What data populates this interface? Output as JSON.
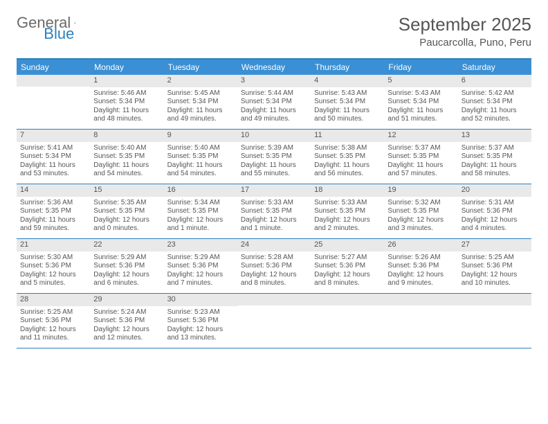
{
  "logo": {
    "text1": "General",
    "text2": "Blue"
  },
  "title": "September 2025",
  "location": "Paucarcolla, Puno, Peru",
  "colors": {
    "accent": "#3b8fd4",
    "border": "#2a7fbf",
    "dayHeaderBg": "#e9e9e9",
    "text": "#555555"
  },
  "weekdays": [
    "Sunday",
    "Monday",
    "Tuesday",
    "Wednesday",
    "Thursday",
    "Friday",
    "Saturday"
  ],
  "weeks": [
    [
      {
        "n": "",
        "sunrise": "",
        "sunset": "",
        "daylight": ""
      },
      {
        "n": "1",
        "sunrise": "Sunrise: 5:46 AM",
        "sunset": "Sunset: 5:34 PM",
        "daylight": "Daylight: 11 hours and 48 minutes."
      },
      {
        "n": "2",
        "sunrise": "Sunrise: 5:45 AM",
        "sunset": "Sunset: 5:34 PM",
        "daylight": "Daylight: 11 hours and 49 minutes."
      },
      {
        "n": "3",
        "sunrise": "Sunrise: 5:44 AM",
        "sunset": "Sunset: 5:34 PM",
        "daylight": "Daylight: 11 hours and 49 minutes."
      },
      {
        "n": "4",
        "sunrise": "Sunrise: 5:43 AM",
        "sunset": "Sunset: 5:34 PM",
        "daylight": "Daylight: 11 hours and 50 minutes."
      },
      {
        "n": "5",
        "sunrise": "Sunrise: 5:43 AM",
        "sunset": "Sunset: 5:34 PM",
        "daylight": "Daylight: 11 hours and 51 minutes."
      },
      {
        "n": "6",
        "sunrise": "Sunrise: 5:42 AM",
        "sunset": "Sunset: 5:34 PM",
        "daylight": "Daylight: 11 hours and 52 minutes."
      }
    ],
    [
      {
        "n": "7",
        "sunrise": "Sunrise: 5:41 AM",
        "sunset": "Sunset: 5:34 PM",
        "daylight": "Daylight: 11 hours and 53 minutes."
      },
      {
        "n": "8",
        "sunrise": "Sunrise: 5:40 AM",
        "sunset": "Sunset: 5:35 PM",
        "daylight": "Daylight: 11 hours and 54 minutes."
      },
      {
        "n": "9",
        "sunrise": "Sunrise: 5:40 AM",
        "sunset": "Sunset: 5:35 PM",
        "daylight": "Daylight: 11 hours and 54 minutes."
      },
      {
        "n": "10",
        "sunrise": "Sunrise: 5:39 AM",
        "sunset": "Sunset: 5:35 PM",
        "daylight": "Daylight: 11 hours and 55 minutes."
      },
      {
        "n": "11",
        "sunrise": "Sunrise: 5:38 AM",
        "sunset": "Sunset: 5:35 PM",
        "daylight": "Daylight: 11 hours and 56 minutes."
      },
      {
        "n": "12",
        "sunrise": "Sunrise: 5:37 AM",
        "sunset": "Sunset: 5:35 PM",
        "daylight": "Daylight: 11 hours and 57 minutes."
      },
      {
        "n": "13",
        "sunrise": "Sunrise: 5:37 AM",
        "sunset": "Sunset: 5:35 PM",
        "daylight": "Daylight: 11 hours and 58 minutes."
      }
    ],
    [
      {
        "n": "14",
        "sunrise": "Sunrise: 5:36 AM",
        "sunset": "Sunset: 5:35 PM",
        "daylight": "Daylight: 11 hours and 59 minutes."
      },
      {
        "n": "15",
        "sunrise": "Sunrise: 5:35 AM",
        "sunset": "Sunset: 5:35 PM",
        "daylight": "Daylight: 12 hours and 0 minutes."
      },
      {
        "n": "16",
        "sunrise": "Sunrise: 5:34 AM",
        "sunset": "Sunset: 5:35 PM",
        "daylight": "Daylight: 12 hours and 1 minute."
      },
      {
        "n": "17",
        "sunrise": "Sunrise: 5:33 AM",
        "sunset": "Sunset: 5:35 PM",
        "daylight": "Daylight: 12 hours and 1 minute."
      },
      {
        "n": "18",
        "sunrise": "Sunrise: 5:33 AM",
        "sunset": "Sunset: 5:35 PM",
        "daylight": "Daylight: 12 hours and 2 minutes."
      },
      {
        "n": "19",
        "sunrise": "Sunrise: 5:32 AM",
        "sunset": "Sunset: 5:35 PM",
        "daylight": "Daylight: 12 hours and 3 minutes."
      },
      {
        "n": "20",
        "sunrise": "Sunrise: 5:31 AM",
        "sunset": "Sunset: 5:36 PM",
        "daylight": "Daylight: 12 hours and 4 minutes."
      }
    ],
    [
      {
        "n": "21",
        "sunrise": "Sunrise: 5:30 AM",
        "sunset": "Sunset: 5:36 PM",
        "daylight": "Daylight: 12 hours and 5 minutes."
      },
      {
        "n": "22",
        "sunrise": "Sunrise: 5:29 AM",
        "sunset": "Sunset: 5:36 PM",
        "daylight": "Daylight: 12 hours and 6 minutes."
      },
      {
        "n": "23",
        "sunrise": "Sunrise: 5:29 AM",
        "sunset": "Sunset: 5:36 PM",
        "daylight": "Daylight: 12 hours and 7 minutes."
      },
      {
        "n": "24",
        "sunrise": "Sunrise: 5:28 AM",
        "sunset": "Sunset: 5:36 PM",
        "daylight": "Daylight: 12 hours and 8 minutes."
      },
      {
        "n": "25",
        "sunrise": "Sunrise: 5:27 AM",
        "sunset": "Sunset: 5:36 PM",
        "daylight": "Daylight: 12 hours and 8 minutes."
      },
      {
        "n": "26",
        "sunrise": "Sunrise: 5:26 AM",
        "sunset": "Sunset: 5:36 PM",
        "daylight": "Daylight: 12 hours and 9 minutes."
      },
      {
        "n": "27",
        "sunrise": "Sunrise: 5:25 AM",
        "sunset": "Sunset: 5:36 PM",
        "daylight": "Daylight: 12 hours and 10 minutes."
      }
    ],
    [
      {
        "n": "28",
        "sunrise": "Sunrise: 5:25 AM",
        "sunset": "Sunset: 5:36 PM",
        "daylight": "Daylight: 12 hours and 11 minutes."
      },
      {
        "n": "29",
        "sunrise": "Sunrise: 5:24 AM",
        "sunset": "Sunset: 5:36 PM",
        "daylight": "Daylight: 12 hours and 12 minutes."
      },
      {
        "n": "30",
        "sunrise": "Sunrise: 5:23 AM",
        "sunset": "Sunset: 5:36 PM",
        "daylight": "Daylight: 12 hours and 13 minutes."
      },
      {
        "n": "",
        "sunrise": "",
        "sunset": "",
        "daylight": ""
      },
      {
        "n": "",
        "sunrise": "",
        "sunset": "",
        "daylight": ""
      },
      {
        "n": "",
        "sunrise": "",
        "sunset": "",
        "daylight": ""
      },
      {
        "n": "",
        "sunrise": "",
        "sunset": "",
        "daylight": ""
      }
    ]
  ]
}
